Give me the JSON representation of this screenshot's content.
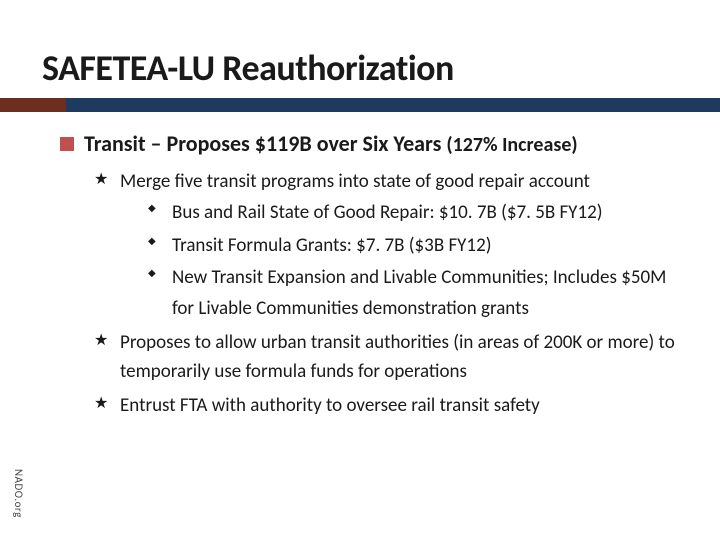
{
  "title": "SAFETEA-LU Reauthorization",
  "section": {
    "prefix": "Transit",
    "rest": " – Proposes $119B over Six Years ",
    "suffix": "(127% Increase)"
  },
  "bullets": [
    {
      "text": "Merge five transit programs into state of good repair account",
      "subs": [
        "Bus and Rail State of Good Repair:  $10. 7B ($7. 5B FY12)",
        "Transit Formula Grants:  $7. 7B ($3B FY12)",
        "New Transit Expansion and Livable Communities; Includes $50M for Livable Communities demonstration grants"
      ]
    },
    {
      "text": "Proposes to allow urban transit authorities (in areas of 200K or more) to temporarily use formula funds for operations",
      "subs": []
    },
    {
      "text": "Entrust FTA with authority to oversee rail transit safety",
      "subs": []
    }
  ],
  "footer": "NADO.org",
  "colors": {
    "bar_left": "#6b2e1f",
    "bar_right": "#1f3a5f",
    "bullet_square": "#c0504d",
    "text": "#1a1a1a",
    "background": "#ffffff"
  },
  "fonts": {
    "title_size": 36,
    "section_size": 22,
    "body_size": 19,
    "footer_size": 11
  }
}
